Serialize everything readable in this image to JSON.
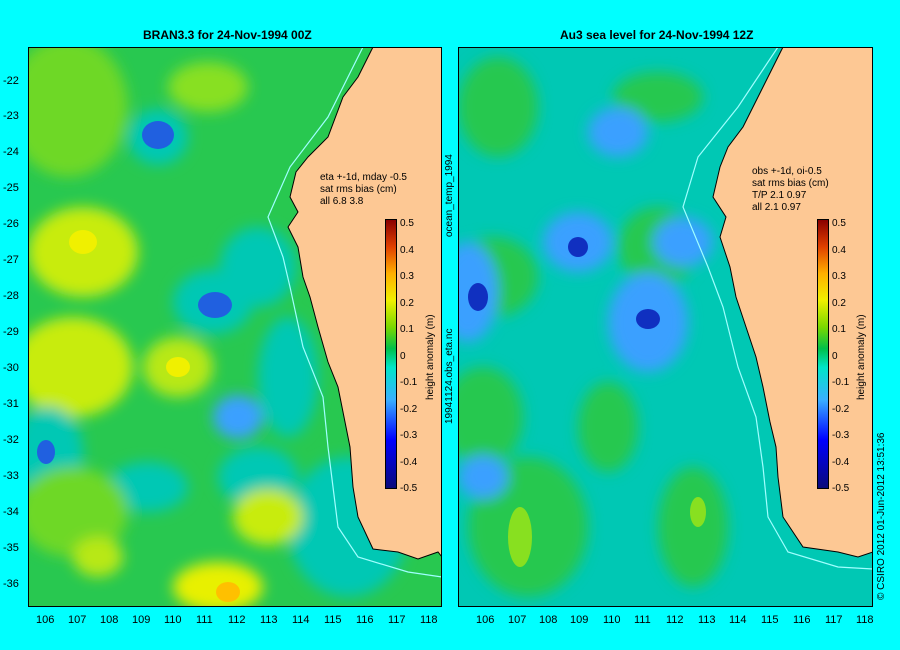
{
  "left_panel": {
    "title": "BRAN3.3 for 24-Nov-1994 00Z",
    "stats": [
      "eta +-1d, mday -0.5",
      "sat rms bias (cm)",
      "all 6.8 3.8"
    ]
  },
  "right_panel": {
    "title": "Au3 sea level  for 24-Nov-1994 12Z",
    "stats": [
      "obs +-1d, oi-0.5",
      "sat rms bias (cm)",
      "T/P  2.1 0.97",
      "all 2.1 0.97"
    ]
  },
  "latitude_labels": [
    "-22",
    "-23",
    "-24",
    "-25",
    "-26",
    "-27",
    "-28",
    "-29",
    "-30",
    "-31",
    "-32",
    "-33",
    "-34",
    "-35",
    "-36"
  ],
  "longitude_labels": [
    "106",
    "107",
    "108",
    "109",
    "110",
    "111",
    "112",
    "113",
    "114",
    "115",
    "116",
    "117",
    "118"
  ],
  "colorbar": {
    "label": "height anomaly (m)",
    "ticks": [
      "0.5",
      "0.4",
      "0.3",
      "0.2",
      "0.1",
      "0",
      "-0.1",
      "-0.2",
      "-0.3",
      "-0.4",
      "-0.5"
    ]
  },
  "middle_text": [
    "ocean_temp_1994",
    "19941124.obs_eta.nc"
  ],
  "credit": "© CSIRO 2012   01-Jun-2012 13:51:36",
  "colors": {
    "background": "#00ffff",
    "land": "#fdc894",
    "coast_line": "#9fffff"
  }
}
